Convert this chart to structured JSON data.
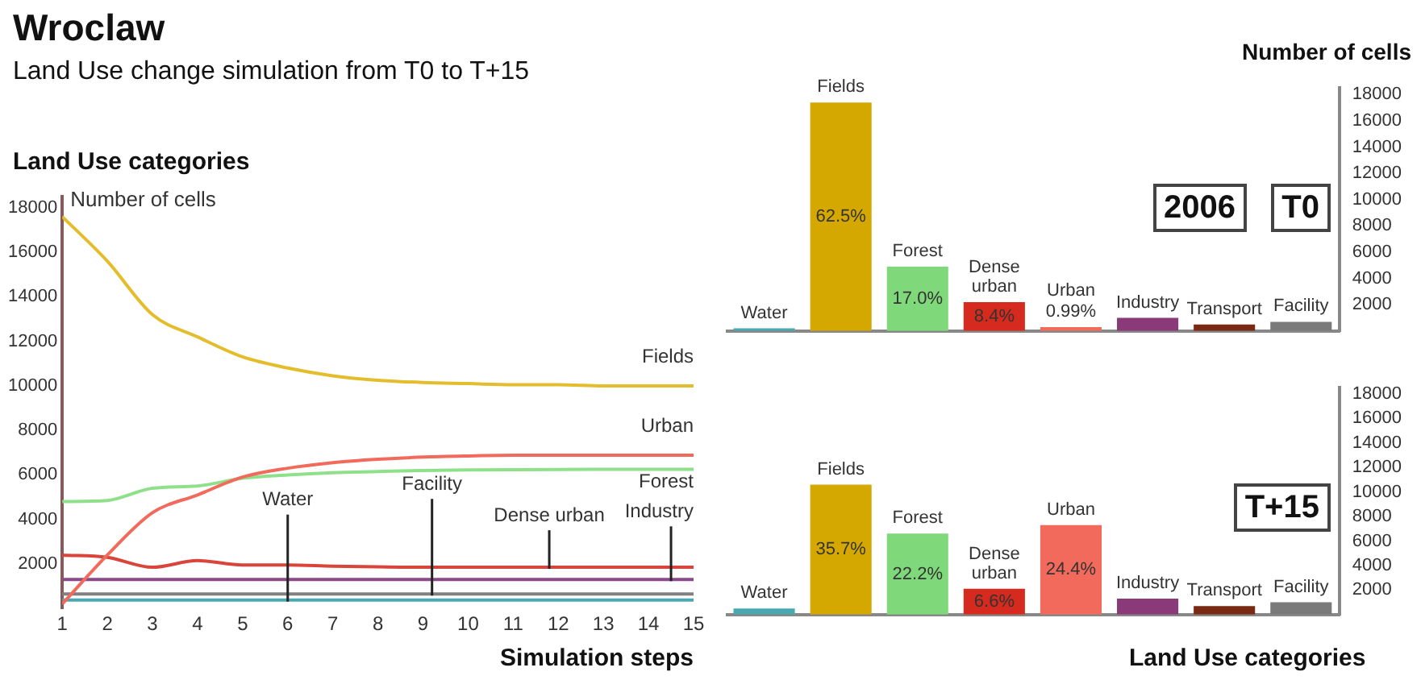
{
  "chart_data": [
    {
      "type": "line",
      "title": "Wroclaw",
      "subtitle": "Land Use change simulation from T0 to T+15",
      "annotations": [
        "Land Use categories"
      ],
      "ylabel": "Number of cells",
      "xlabel": "Simulation steps",
      "x": [
        1,
        2,
        3,
        4,
        5,
        6,
        7,
        8,
        9,
        10,
        11,
        12,
        13,
        14,
        15
      ],
      "xlim": [
        1,
        15
      ],
      "xticks": [
        1,
        2,
        3,
        4,
        5,
        6,
        7,
        8,
        9,
        10,
        11,
        12,
        13,
        14,
        15
      ],
      "ylim": [
        0,
        18500
      ],
      "yticks": [
        2000,
        4000,
        6000,
        8000,
        10000,
        12000,
        14000,
        16000,
        18000
      ],
      "series": [
        {
          "name": "Fields",
          "color": "#e3bd2c",
          "values": [
            17600,
            15600,
            13200,
            12200,
            11300,
            10800,
            10450,
            10250,
            10150,
            10100,
            10050,
            10050,
            10000,
            10000,
            10000
          ]
        },
        {
          "name": "Urban",
          "color": "#f26a5c",
          "values": [
            200,
            2400,
            4300,
            5100,
            5900,
            6300,
            6550,
            6700,
            6800,
            6850,
            6880,
            6880,
            6880,
            6880,
            6880
          ]
        },
        {
          "name": "Forest",
          "color": "#8fe08b",
          "values": [
            4800,
            4850,
            5400,
            5500,
            5850,
            6000,
            6100,
            6150,
            6200,
            6220,
            6230,
            6240,
            6250,
            6250,
            6250
          ]
        },
        {
          "name": "Dense urban",
          "color": "#d9453a",
          "values": [
            2400,
            2300,
            1850,
            2150,
            1950,
            1950,
            1900,
            1870,
            1850,
            1850,
            1850,
            1850,
            1850,
            1850,
            1850
          ]
        },
        {
          "name": "Industry",
          "color": "#8a4a8a",
          "values": [
            1300,
            1300,
            1300,
            1300,
            1300,
            1300,
            1300,
            1300,
            1300,
            1300,
            1300,
            1300,
            1300,
            1300,
            1300
          ]
        },
        {
          "name": "Facility",
          "color": "#808080",
          "values": [
            650,
            650,
            650,
            650,
            650,
            650,
            650,
            650,
            650,
            650,
            650,
            650,
            650,
            650,
            650
          ]
        },
        {
          "name": "Water",
          "color": "#4aa8b0",
          "values": [
            380,
            380,
            380,
            380,
            380,
            380,
            380,
            380,
            380,
            380,
            380,
            380,
            380,
            380,
            380
          ]
        }
      ]
    },
    {
      "type": "bar",
      "ylabel": "Number of cells",
      "annotations": [
        "2006",
        "T0",
        "62.5%",
        "17.0%",
        "8.4%",
        "0.99%"
      ],
      "categories": [
        "Water",
        "Fields",
        "Forest",
        "Dense urban",
        "Urban",
        "Industry",
        "Transport",
        "Facility"
      ],
      "values": [
        200,
        17400,
        4900,
        2200,
        300,
        1000,
        500,
        700
      ],
      "colors": [
        "#4aa8b0",
        "#d4a800",
        "#7fd97a",
        "#d62a1e",
        "#f26a5c",
        "#8a3a78",
        "#7a2a14",
        "#7a7a7a"
      ],
      "ylim": [
        0,
        18500
      ],
      "yticks": [
        2000,
        4000,
        6000,
        8000,
        10000,
        12000,
        14000,
        16000,
        18000
      ]
    },
    {
      "type": "bar",
      "xlabel": "Land Use categories",
      "annotations": [
        "T+15",
        "35.7%",
        "22.2%",
        "6.6%",
        "24.4%"
      ],
      "categories": [
        "Water",
        "Fields",
        "Forest",
        "Dense urban",
        "Urban",
        "Industry",
        "Transport",
        "Facility"
      ],
      "values": [
        500,
        10600,
        6600,
        2100,
        7300,
        1300,
        700,
        1000
      ],
      "colors": [
        "#4aa8b0",
        "#d4a800",
        "#7fd97a",
        "#d62a1e",
        "#f26a5c",
        "#8a3a78",
        "#7a2a14",
        "#7a7a7a"
      ],
      "ylim": [
        0,
        18500
      ],
      "yticks": [
        2000,
        4000,
        6000,
        8000,
        10000,
        12000,
        14000,
        16000,
        18000
      ]
    }
  ]
}
